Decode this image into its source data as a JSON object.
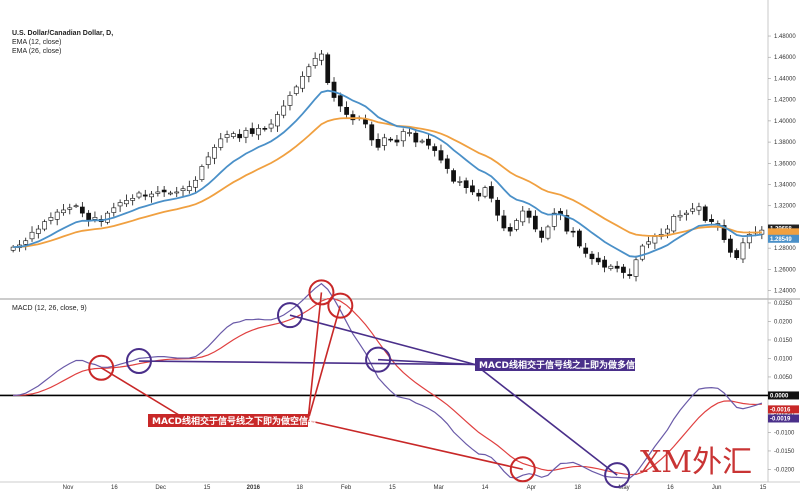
{
  "price_panel": {
    "title": "U.S. Dollar/Canadian Dollar, D,",
    "ema12_label": "EMA (12, close)",
    "ema26_label": "EMA (26, close)"
  },
  "macd_panel": {
    "title": "MACD (12, 26, close, 9)"
  },
  "annotations": {
    "bull_text": "MACD线相交于信号线之上即为做多信号",
    "bear_text": "MACD线相交于信号线之下即为做空信号",
    "watermark": "XM外汇"
  },
  "colors": {
    "ema12": "#4a90c8",
    "ema26": "#f0a040",
    "macd_line": "#6a5aa8",
    "signal_line": "#e04040",
    "bull_circle": "#4a2f8a",
    "bear_circle": "#c82828",
    "bull_box": "#4a2f8a",
    "bear_box": "#c82828"
  },
  "chart_data": [
    {
      "type": "candlestick",
      "x_ticks": [
        "Nov",
        "16",
        "Dec",
        "15",
        "2016",
        "18",
        "Feb",
        "15",
        "Mar",
        "14",
        "Apr",
        "18",
        "May",
        "16",
        "Jun",
        "15"
      ],
      "y_ticks": [
        "1.48000",
        "1.46000",
        "1.44000",
        "1.42000",
        "1.40000",
        "1.38000",
        "1.36000",
        "1.34000",
        "1.32000",
        "1.30000",
        "1.28000",
        "1.26000",
        "1.24000"
      ],
      "ylim": [
        1.233,
        1.497
      ],
      "price_labels": [
        "1.29658",
        "1.28549"
      ],
      "closes": [
        1.281,
        1.283,
        1.287,
        1.295,
        1.298,
        1.305,
        1.309,
        1.314,
        1.316,
        1.318,
        1.32,
        1.313,
        1.306,
        1.309,
        1.305,
        1.313,
        1.318,
        1.323,
        1.325,
        1.327,
        1.332,
        1.329,
        1.331,
        1.333,
        1.333,
        1.332,
        1.333,
        1.336,
        1.338,
        1.344,
        1.357,
        1.366,
        1.375,
        1.383,
        1.387,
        1.388,
        1.384,
        1.391,
        1.388,
        1.393,
        1.392,
        1.397,
        1.406,
        1.414,
        1.424,
        1.432,
        1.442,
        1.451,
        1.459,
        1.463,
        1.436,
        1.422,
        1.414,
        1.406,
        1.401,
        1.403,
        1.397,
        1.382,
        1.375,
        1.384,
        1.382,
        1.38,
        1.39,
        1.389,
        1.38,
        1.381,
        1.377,
        1.372,
        1.363,
        1.355,
        1.343,
        1.343,
        1.337,
        1.333,
        1.329,
        1.337,
        1.327,
        1.311,
        1.299,
        1.296,
        1.306,
        1.315,
        1.309,
        1.298,
        1.29,
        1.3,
        1.313,
        1.312,
        1.296,
        1.295,
        1.282,
        1.275,
        1.27,
        1.267,
        1.262,
        1.263,
        1.261,
        1.257,
        1.254,
        1.269,
        1.282,
        1.286,
        1.291,
        1.293,
        1.298,
        1.31,
        1.311,
        1.313,
        1.317,
        1.319,
        1.306,
        1.305,
        1.302,
        1.288,
        1.276,
        1.271,
        1.285,
        1.293,
        1.295,
        1.297
      ],
      "series": [
        {
          "name": "EMA (12, close)"
        },
        {
          "name": "EMA (26, close)"
        }
      ]
    },
    {
      "type": "line",
      "y_ticks": [
        "0.0250",
        "0.0200",
        "0.0150",
        "0.0100",
        "0.0050",
        "0.0000",
        "-0.0050",
        "-0.0100",
        "-0.0150",
        "-0.0200"
      ],
      "ylim": [
        -0.0215,
        0.0258
      ],
      "value_labels": [
        "0.0000",
        "-0.0016",
        "-0.0019"
      ],
      "series": [
        {
          "name": "MACD"
        },
        {
          "name": "Signal"
        }
      ],
      "bull_cross_indices": [
        20,
        44,
        58,
        96
      ],
      "bear_cross_indices": [
        14,
        49,
        52,
        81
      ]
    }
  ]
}
